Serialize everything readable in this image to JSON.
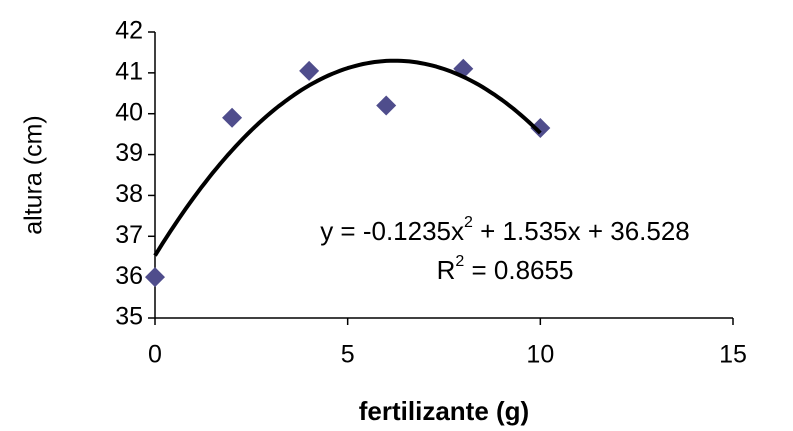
{
  "chart_data": {
    "type": "scatter",
    "x_label": "fertilizante (g)",
    "y_label": "altura (cm)",
    "series": [
      {
        "color": "#4f4d8c",
        "x": [
          0,
          2,
          4,
          6,
          8,
          10
        ],
        "values": [
          36,
          39.9,
          41.05,
          40.2,
          41.1,
          39.65
        ]
      }
    ],
    "trendline": {
      "type": "poly2",
      "coefficients": [
        -0.1235,
        1.535,
        36.528
      ],
      "color": "#000000",
      "equation": [
        "y = -0.1235x",
        "2",
        " + 1.535x + 36.528"
      ],
      "r_squared": [
        "R",
        "2",
        " = 0.8655"
      ]
    },
    "xlim": [
      0,
      15
    ],
    "xticks": [
      0,
      5,
      10,
      15
    ],
    "ylim": [
      35,
      42
    ],
    "yticks": [
      35,
      36,
      37,
      38,
      39,
      40,
      41,
      42
    ],
    "grid": false
  }
}
